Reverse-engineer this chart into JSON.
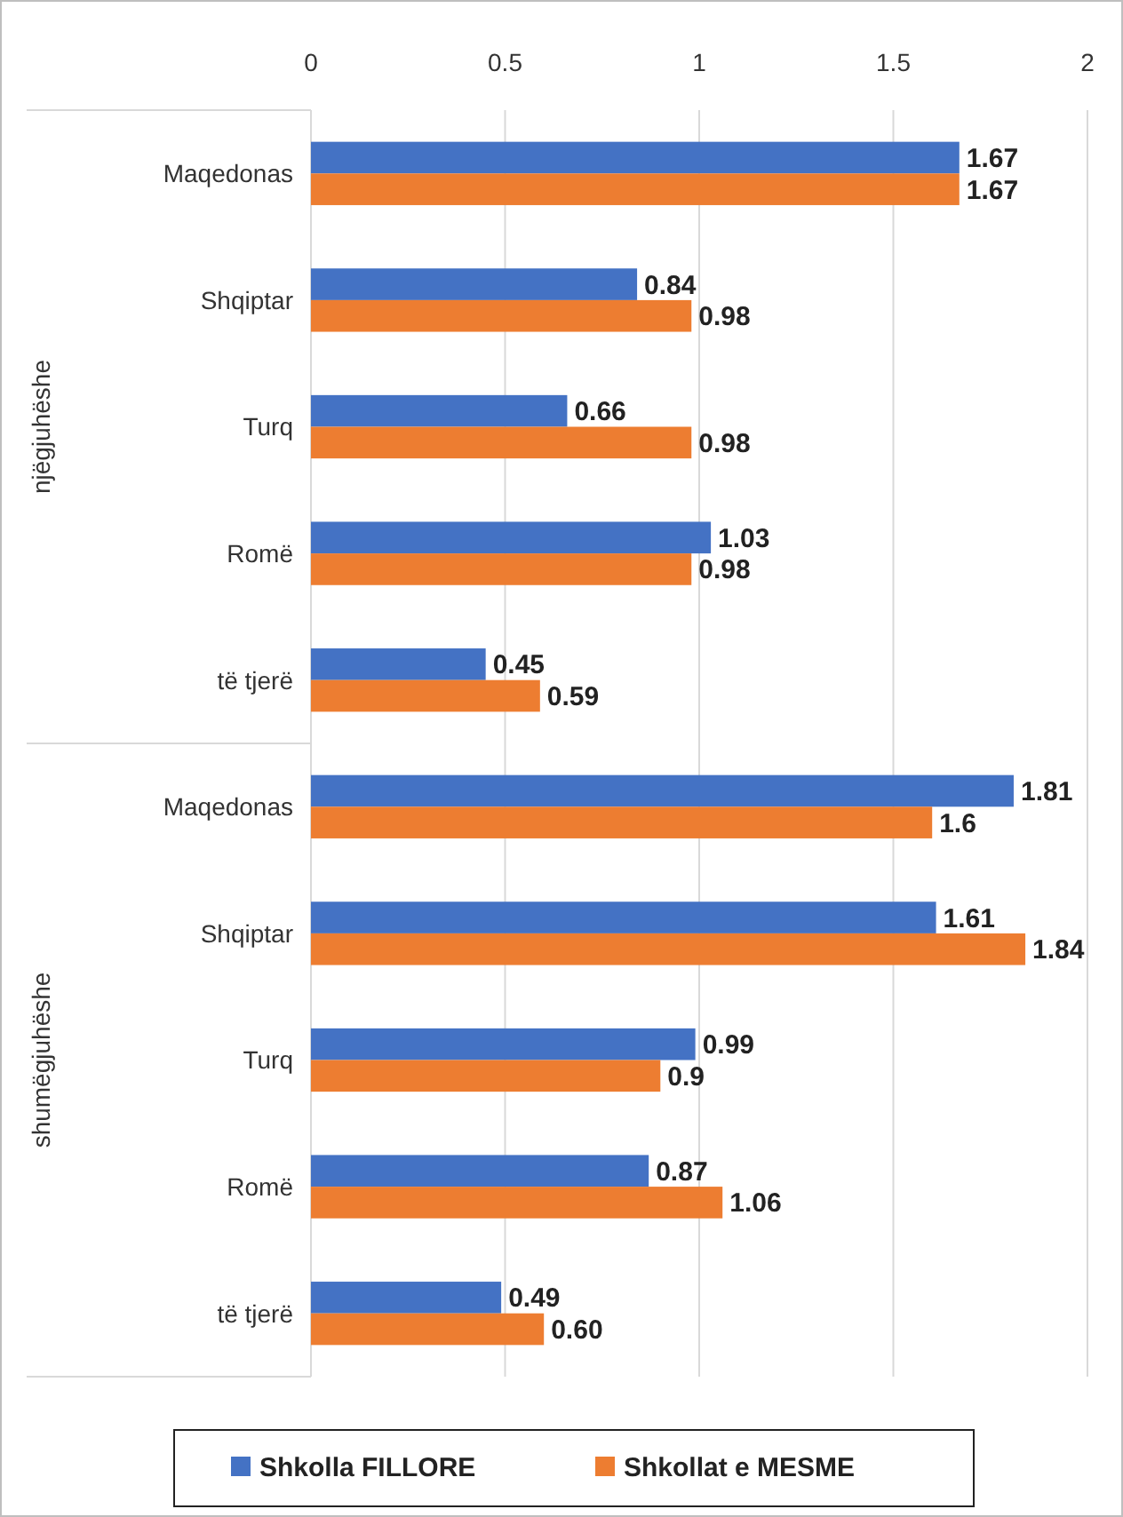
{
  "chart_data": {
    "type": "bar",
    "orientation": "horizontal",
    "categories": [
      "Maqedonas",
      "Shqiptar",
      "Turq",
      "Romë",
      "të tjerë",
      "Maqedonas",
      "Shqiptar",
      "Turq",
      "Romë",
      "të tjerë"
    ],
    "series": [
      {
        "name": "Shkolla FILLORE",
        "color": "#4472c4",
        "values": [
          1.67,
          0.84,
          0.66,
          1.03,
          0.45,
          1.81,
          1.61,
          0.99,
          0.87,
          0.49
        ],
        "value_labels": [
          "1.67",
          "0.84",
          "0.66",
          "1.03",
          "0.45",
          "1.81",
          "1.61",
          "0.99",
          "0.87",
          "0.49"
        ]
      },
      {
        "name": "Shkollat e MESME",
        "color": "#ed7d31",
        "values": [
          1.67,
          0.98,
          0.98,
          0.98,
          0.59,
          1.6,
          1.84,
          0.9,
          1.06,
          0.6
        ],
        "value_labels": [
          "1.67",
          "0.98",
          "0.98",
          "0.98",
          "0.59",
          "1.6",
          "1.84",
          "0.9",
          "1.06",
          "0.60"
        ]
      }
    ],
    "xlim": [
      0,
      2
    ],
    "xticks": [
      0,
      0.5,
      1,
      1.5,
      2
    ],
    "grid": "x",
    "legend": "bottom",
    "annotations": [
      "njëgjuhëshe",
      "shumëgjuhëshe"
    ]
  }
}
